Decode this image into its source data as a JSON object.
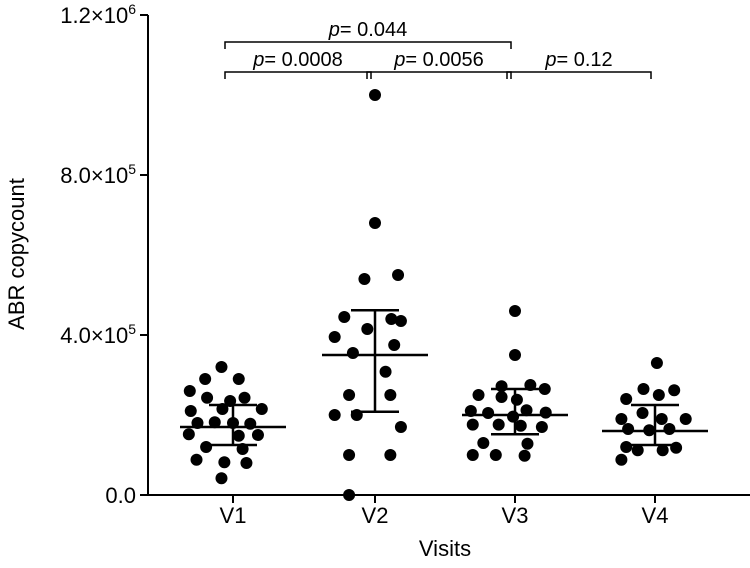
{
  "chart_data": {
    "type": "scatter",
    "xlabel": "Visits",
    "ylabel": "ABR copycount",
    "categories": [
      "V1",
      "V2",
      "V3",
      "V4"
    ],
    "ylim": [
      0,
      1200000
    ],
    "yticks": [
      {
        "value": 0,
        "label": "0.0"
      },
      {
        "value": 400000,
        "label": "4.0×10",
        "exp": "5"
      },
      {
        "value": 800000,
        "label": "8.0×10",
        "exp": "5"
      },
      {
        "value": 1200000,
        "label": "1.2×10",
        "exp": "6"
      }
    ],
    "grid": false,
    "series": [
      {
        "category": "V1",
        "points": [
          {
            "x": -0.12,
            "y": 320000
          },
          {
            "x": -0.29,
            "y": 290000
          },
          {
            "x": 0.06,
            "y": 290000
          },
          {
            "x": -0.45,
            "y": 260000
          },
          {
            "x": -0.27,
            "y": 243000
          },
          {
            "x": 0.12,
            "y": 243000
          },
          {
            "x": -0.03,
            "y": 235000
          },
          {
            "x": -0.44,
            "y": 210000
          },
          {
            "x": -0.11,
            "y": 215000
          },
          {
            "x": 0.3,
            "y": 215000
          },
          {
            "x": -0.37,
            "y": 180000
          },
          {
            "x": -0.19,
            "y": 182000
          },
          {
            "x": 0.0,
            "y": 180000
          },
          {
            "x": 0.18,
            "y": 178000
          },
          {
            "x": -0.46,
            "y": 152000
          },
          {
            "x": 0.06,
            "y": 148000
          },
          {
            "x": 0.26,
            "y": 150000
          },
          {
            "x": -0.28,
            "y": 120000
          },
          {
            "x": 0.1,
            "y": 115000
          },
          {
            "x": -0.38,
            "y": 88000
          },
          {
            "x": -0.09,
            "y": 82000
          },
          {
            "x": 0.14,
            "y": 80000
          },
          {
            "x": -0.12,
            "y": 42000
          }
        ],
        "median": 170000,
        "upper": 225000,
        "lower": 125000
      },
      {
        "category": "V2",
        "points": [
          {
            "x": 0.0,
            "y": 1000000
          },
          {
            "x": 0.0,
            "y": 680000
          },
          {
            "x": 0.24,
            "y": 550000
          },
          {
            "x": -0.11,
            "y": 540000
          },
          {
            "x": -0.32,
            "y": 445000
          },
          {
            "x": 0.17,
            "y": 440000
          },
          {
            "x": -0.08,
            "y": 415000
          },
          {
            "x": 0.27,
            "y": 435000
          },
          {
            "x": -0.42,
            "y": 395000
          },
          {
            "x": 0.2,
            "y": 375000
          },
          {
            "x": -0.23,
            "y": 355000
          },
          {
            "x": 0.11,
            "y": 308000
          },
          {
            "x": -0.27,
            "y": 250000
          },
          {
            "x": 0.16,
            "y": 250000
          },
          {
            "x": -0.42,
            "y": 200000
          },
          {
            "x": -0.19,
            "y": 200000
          },
          {
            "x": 0.27,
            "y": 170000
          },
          {
            "x": -0.27,
            "y": 100000
          },
          {
            "x": 0.16,
            "y": 100000
          },
          {
            "x": -0.27,
            "y": 0
          }
        ],
        "median": 350000,
        "upper": 462000,
        "lower": 208000
      },
      {
        "category": "V3",
        "points": [
          {
            "x": 0.0,
            "y": 460000
          },
          {
            "x": 0.0,
            "y": 350000
          },
          {
            "x": -0.14,
            "y": 272000
          },
          {
            "x": 0.16,
            "y": 275000
          },
          {
            "x": 0.31,
            "y": 265000
          },
          {
            "x": -0.38,
            "y": 250000
          },
          {
            "x": -0.14,
            "y": 245000
          },
          {
            "x": 0.02,
            "y": 238000
          },
          {
            "x": -0.46,
            "y": 210000
          },
          {
            "x": 0.12,
            "y": 212000
          },
          {
            "x": 0.32,
            "y": 206000
          },
          {
            "x": -0.28,
            "y": 205000
          },
          {
            "x": -0.02,
            "y": 196000
          },
          {
            "x": -0.44,
            "y": 176000
          },
          {
            "x": -0.17,
            "y": 176000
          },
          {
            "x": 0.06,
            "y": 173000
          },
          {
            "x": 0.28,
            "y": 170000
          },
          {
            "x": -0.33,
            "y": 130000
          },
          {
            "x": 0.13,
            "y": 128000
          },
          {
            "x": -0.44,
            "y": 100000
          },
          {
            "x": -0.2,
            "y": 100000
          },
          {
            "x": 0.1,
            "y": 98000
          }
        ],
        "median": 200000,
        "upper": 265000,
        "lower": 152000
      },
      {
        "category": "V4",
        "points": [
          {
            "x": 0.02,
            "y": 330000
          },
          {
            "x": -0.12,
            "y": 265000
          },
          {
            "x": 0.2,
            "y": 262000
          },
          {
            "x": -0.3,
            "y": 240000
          },
          {
            "x": 0.04,
            "y": 250000
          },
          {
            "x": -0.35,
            "y": 190000
          },
          {
            "x": -0.13,
            "y": 205000
          },
          {
            "x": 0.07,
            "y": 190000
          },
          {
            "x": 0.32,
            "y": 190000
          },
          {
            "x": -0.28,
            "y": 165000
          },
          {
            "x": -0.06,
            "y": 162000
          },
          {
            "x": 0.15,
            "y": 165000
          },
          {
            "x": -0.3,
            "y": 120000
          },
          {
            "x": 0.22,
            "y": 118000
          },
          {
            "x": -0.18,
            "y": 112000
          },
          {
            "x": 0.08,
            "y": 112000
          },
          {
            "x": -0.35,
            "y": 88000
          }
        ],
        "median": 160000,
        "upper": 225000,
        "lower": 125000
      }
    ],
    "comparisons": [
      {
        "from": 0,
        "to": 1,
        "level": 1,
        "prefix": "p",
        "text": "= 0.0008"
      },
      {
        "from": 1,
        "to": 2,
        "level": 1,
        "prefix": "p",
        "text": "= 0.0056"
      },
      {
        "from": 2,
        "to": 3,
        "level": 1,
        "prefix": "p",
        "text": "= 0.12"
      },
      {
        "from": 0,
        "to": 2,
        "level": 2,
        "prefix": "p",
        "text": "= 0.044"
      }
    ]
  }
}
